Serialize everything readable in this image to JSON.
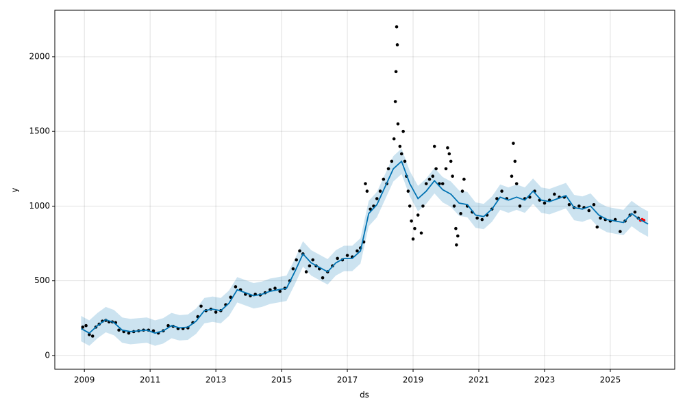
{
  "chart_data": {
    "type": "forecast",
    "xlabel": "ds",
    "ylabel": "y",
    "xlim": [
      2008.1,
      2026.96
    ],
    "ylim": [
      -92,
      2311
    ],
    "xticks": [
      2009,
      2011,
      2013,
      2015,
      2017,
      2019,
      2021,
      2023,
      2025
    ],
    "yticks": [
      0,
      500,
      1000,
      1500,
      2000
    ],
    "grid": true,
    "forecast": {
      "color": "#0072b2",
      "x": [
        2008.9,
        2009.15,
        2009.4,
        2009.65,
        2009.9,
        2010.15,
        2010.4,
        2010.65,
        2010.9,
        2011.15,
        2011.4,
        2011.65,
        2011.9,
        2012.15,
        2012.4,
        2012.65,
        2012.9,
        2013.15,
        2013.4,
        2013.65,
        2013.9,
        2014.15,
        2014.4,
        2014.65,
        2014.9,
        2015.15,
        2015.4,
        2015.65,
        2015.9,
        2016.15,
        2016.4,
        2016.65,
        2016.9,
        2017.15,
        2017.4,
        2017.65,
        2017.9,
        2018.15,
        2018.4,
        2018.65,
        2018.9,
        2019.15,
        2019.4,
        2019.65,
        2019.9,
        2020.15,
        2020.4,
        2020.65,
        2020.9,
        2021.15,
        2021.4,
        2021.65,
        2021.9,
        2022.15,
        2022.4,
        2022.65,
        2022.9,
        2023.15,
        2023.4,
        2023.65,
        2023.9,
        2024.15,
        2024.4,
        2024.65,
        2024.9,
        2025.15,
        2025.4,
        2025.65,
        2025.9,
        2026.15
      ],
      "values": [
        180,
        150,
        200,
        240,
        220,
        170,
        160,
        165,
        170,
        150,
        165,
        200,
        185,
        190,
        230,
        300,
        310,
        300,
        350,
        440,
        420,
        400,
        410,
        430,
        440,
        450,
        560,
        680,
        620,
        590,
        560,
        620,
        650,
        650,
        700,
        950,
        1010,
        1130,
        1250,
        1300,
        1150,
        1050,
        1100,
        1170,
        1110,
        1080,
        1020,
        1010,
        940,
        930,
        980,
        1060,
        1040,
        1060,
        1040,
        1100,
        1040,
        1030,
        1050,
        1070,
        990,
        980,
        1000,
        940,
        910,
        900,
        890,
        950,
        910,
        880
      ],
      "lower": [
        95,
        65,
        115,
        155,
        135,
        85,
        75,
        80,
        85,
        65,
        80,
        115,
        100,
        105,
        145,
        215,
        225,
        215,
        265,
        355,
        335,
        315,
        325,
        345,
        355,
        365,
        475,
        595,
        535,
        505,
        475,
        535,
        565,
        565,
        615,
        865,
        925,
        1045,
        1165,
        1215,
        1065,
        965,
        1015,
        1085,
        1025,
        995,
        935,
        925,
        855,
        845,
        895,
        975,
        955,
        975,
        955,
        1015,
        955,
        945,
        965,
        985,
        905,
        895,
        915,
        855,
        825,
        815,
        805,
        865,
        825,
        795
      ],
      "upper": [
        265,
        235,
        285,
        325,
        305,
        255,
        245,
        250,
        255,
        235,
        250,
        285,
        270,
        275,
        315,
        385,
        395,
        385,
        435,
        525,
        505,
        485,
        495,
        515,
        525,
        535,
        645,
        765,
        705,
        675,
        645,
        705,
        735,
        735,
        785,
        1035,
        1095,
        1215,
        1335,
        1385,
        1235,
        1135,
        1185,
        1255,
        1195,
        1165,
        1105,
        1095,
        1025,
        1015,
        1065,
        1145,
        1125,
        1145,
        1125,
        1185,
        1125,
        1115,
        1135,
        1155,
        1075,
        1065,
        1085,
        1025,
        995,
        985,
        975,
        1035,
        995,
        965
      ]
    },
    "observed": {
      "color": "#000000",
      "x": [
        2008.95,
        2009.05,
        2009.15,
        2009.25,
        2009.35,
        2009.45,
        2009.55,
        2009.65,
        2009.75,
        2009.85,
        2009.95,
        2010.05,
        2010.2,
        2010.35,
        2010.5,
        2010.65,
        2010.8,
        2010.95,
        2011.1,
        2011.25,
        2011.4,
        2011.55,
        2011.7,
        2011.85,
        2012.0,
        2012.15,
        2012.3,
        2012.45,
        2012.55,
        2012.7,
        2012.85,
        2013.0,
        2013.15,
        2013.3,
        2013.45,
        2013.6,
        2013.75,
        2013.9,
        2014.05,
        2014.2,
        2014.35,
        2014.5,
        2014.65,
        2014.8,
        2014.95,
        2015.1,
        2015.25,
        2015.35,
        2015.45,
        2015.55,
        2015.65,
        2015.75,
        2015.85,
        2015.95,
        2016.05,
        2016.15,
        2016.25,
        2016.4,
        2016.55,
        2016.7,
        2016.85,
        2017.0,
        2017.15,
        2017.3,
        2017.4,
        2017.5,
        2017.55,
        2017.6,
        2017.7,
        2017.8,
        2017.9,
        2018.0,
        2018.1,
        2018.2,
        2018.25,
        2018.35,
        2018.42,
        2018.46,
        2018.48,
        2018.5,
        2018.52,
        2018.54,
        2018.6,
        2018.65,
        2018.7,
        2018.75,
        2018.8,
        2018.85,
        2018.9,
        2018.95,
        2019.0,
        2019.05,
        2019.15,
        2019.25,
        2019.3,
        2019.4,
        2019.5,
        2019.6,
        2019.65,
        2019.7,
        2019.8,
        2019.9,
        2020.0,
        2020.05,
        2020.1,
        2020.15,
        2020.2,
        2020.25,
        2020.3,
        2020.32,
        2020.36,
        2020.45,
        2020.5,
        2020.55,
        2020.65,
        2020.8,
        2020.95,
        2021.1,
        2021.25,
        2021.4,
        2021.55,
        2021.7,
        2021.85,
        2022.0,
        2022.05,
        2022.1,
        2022.15,
        2022.25,
        2022.4,
        2022.55,
        2022.7,
        2022.85,
        2023.0,
        2023.15,
        2023.3,
        2023.45,
        2023.6,
        2023.75,
        2023.9,
        2024.05,
        2024.2,
        2024.35,
        2024.5,
        2024.6,
        2024.7,
        2024.85,
        2025.0,
        2025.15,
        2025.3,
        2025.45,
        2025.6,
        2025.75,
        2025.85
      ],
      "values": [
        190,
        200,
        140,
        130,
        190,
        210,
        230,
        235,
        225,
        225,
        220,
        170,
        160,
        150,
        160,
        165,
        170,
        170,
        165,
        150,
        165,
        200,
        195,
        180,
        180,
        185,
        220,
        260,
        330,
        300,
        310,
        290,
        300,
        340,
        390,
        460,
        440,
        410,
        400,
        410,
        405,
        420,
        440,
        450,
        430,
        450,
        500,
        580,
        640,
        700,
        680,
        560,
        600,
        640,
        600,
        580,
        520,
        560,
        600,
        650,
        640,
        670,
        660,
        700,
        720,
        760,
        1150,
        1100,
        980,
        1000,
        1050,
        1100,
        1180,
        1150,
        1250,
        1300,
        1450,
        1700,
        1900,
        2200,
        2080,
        1550,
        1400,
        1350,
        1500,
        1300,
        1200,
        1100,
        1000,
        900,
        780,
        850,
        940,
        820,
        1000,
        1150,
        1180,
        1200,
        1400,
        1250,
        1150,
        1150,
        1250,
        1390,
        1350,
        1300,
        1200,
        1000,
        850,
        740,
        800,
        950,
        1100,
        1180,
        1000,
        960,
        920,
        910,
        940,
        980,
        1050,
        1100,
        1050,
        1200,
        1420,
        1300,
        1150,
        1000,
        1050,
        1060,
        1100,
        1040,
        1020,
        1040,
        1080,
        1060,
        1060,
        1010,
        990,
        1000,
        990,
        970,
        1010,
        860,
        920,
        910,
        900,
        910,
        830,
        900,
        940,
        960,
        920
      ]
    },
    "holdout": {
      "color": "#ff0000",
      "x": [
        2025.92,
        2025.97,
        2026.02
      ],
      "values": [
        905,
        910,
        905
      ]
    }
  }
}
